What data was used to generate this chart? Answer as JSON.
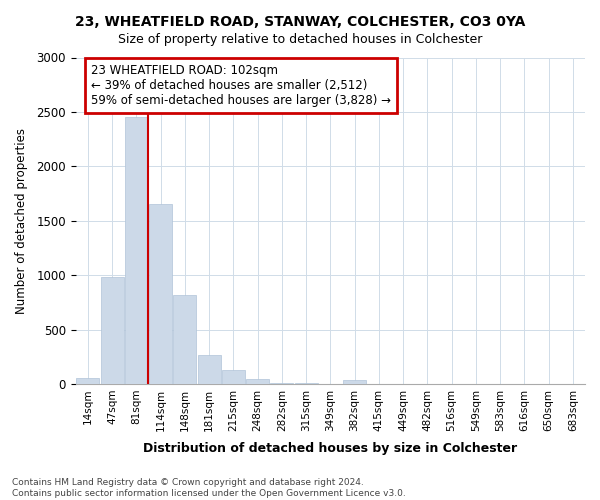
{
  "title": "23, WHEATFIELD ROAD, STANWAY, COLCHESTER, CO3 0YA",
  "subtitle": "Size of property relative to detached houses in Colchester",
  "xlabel": "Distribution of detached houses by size in Colchester",
  "ylabel": "Number of detached properties",
  "categories": [
    "14sqm",
    "47sqm",
    "81sqm",
    "114sqm",
    "148sqm",
    "181sqm",
    "215sqm",
    "248sqm",
    "282sqm",
    "315sqm",
    "349sqm",
    "382sqm",
    "415sqm",
    "449sqm",
    "482sqm",
    "516sqm",
    "549sqm",
    "583sqm",
    "616sqm",
    "650sqm",
    "683sqm"
  ],
  "values": [
    50,
    980,
    2450,
    1650,
    820,
    270,
    125,
    45,
    12,
    5,
    3,
    35,
    2,
    0,
    0,
    0,
    0,
    0,
    0,
    0,
    0
  ],
  "bar_color": "#ccd9e8",
  "bar_edge_color": "#b0c4d8",
  "vline_index": 2,
  "annotation_text": "23 WHEATFIELD ROAD: 102sqm\n← 39% of detached houses are smaller (2,512)\n59% of semi-detached houses are larger (3,828) →",
  "annotation_box_color": "#ffffff",
  "annotation_box_edge_color": "#cc0000",
  "vline_color": "#cc0000",
  "footer_line1": "Contains HM Land Registry data © Crown copyright and database right 2024.",
  "footer_line2": "Contains public sector information licensed under the Open Government Licence v3.0.",
  "ylim": [
    0,
    3000
  ],
  "yticks": [
    0,
    500,
    1000,
    1500,
    2000,
    2500,
    3000
  ],
  "background_color": "#ffffff",
  "plot_bg_color": "#ffffff",
  "grid_color": "#d0dce8",
  "title_fontsize": 10,
  "subtitle_fontsize": 9
}
